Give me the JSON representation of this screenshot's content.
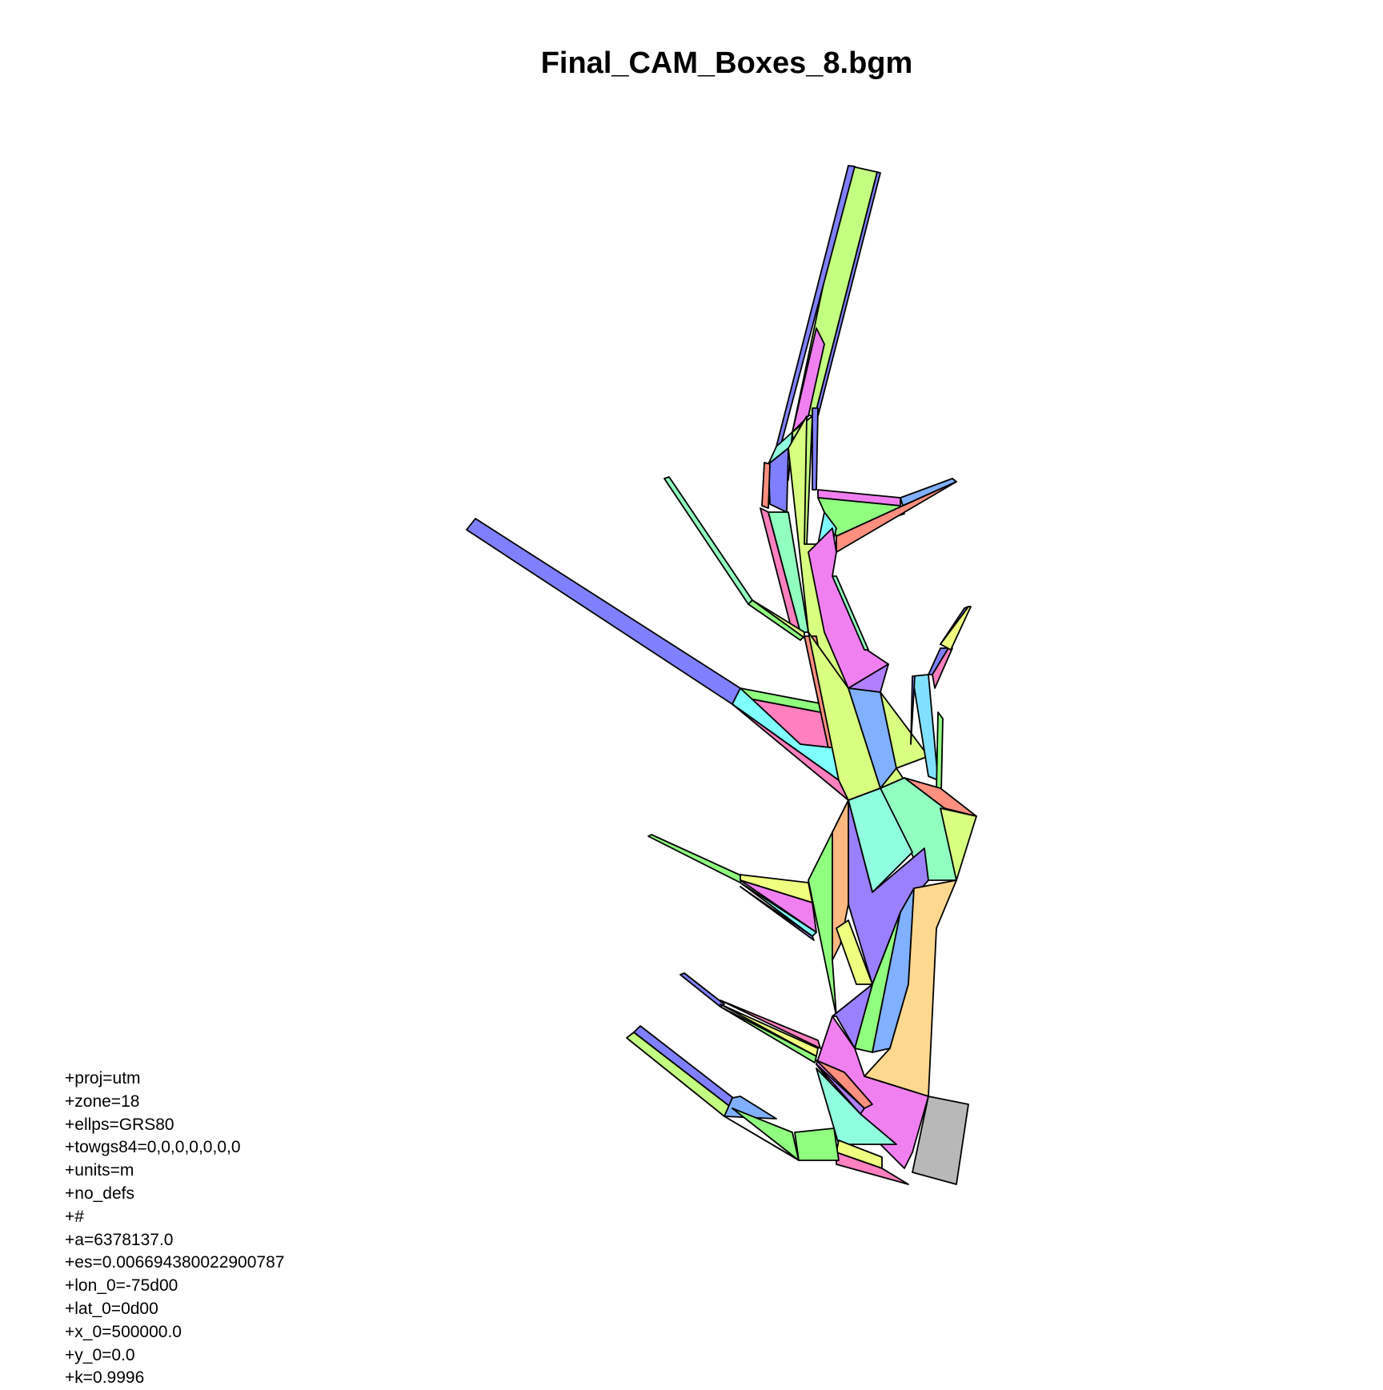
{
  "title": "Final_CAM_Boxes_8.bgm",
  "colors": {
    "lime": "#c3ff80",
    "blue": "#8080ff",
    "pink": "#ff80c0",
    "magenta": "#f080f0",
    "yellowgreen": "#d8ff80",
    "green": "#90ff80",
    "salmon": "#ff9080",
    "cyan": "#80ffff",
    "purple": "#b080ff",
    "skyblue": "#80b0ff",
    "orange": "#ffb880",
    "aqua": "#90ffe0",
    "mint": "#90ffc0",
    "violet": "#9a80ff",
    "gold": "#ffd890",
    "yellow": "#f0ff80",
    "lightblue": "#80e0ff",
    "gray": "#b8b8b8"
  },
  "projection": [
    "+proj=utm",
    "+zone=18",
    "+ellps=GRS80",
    "+towgs84=0,0,0,0,0,0,0",
    "+units=m",
    "+no_defs",
    "+#",
    "+a=6378137.0",
    "+es=0.006694380022900787",
    "+lon_0=-75d00",
    "+lat_0=0d00",
    "+x_0=500000.0",
    "+y_0=0.0",
    "+k=0.9996"
  ]
}
